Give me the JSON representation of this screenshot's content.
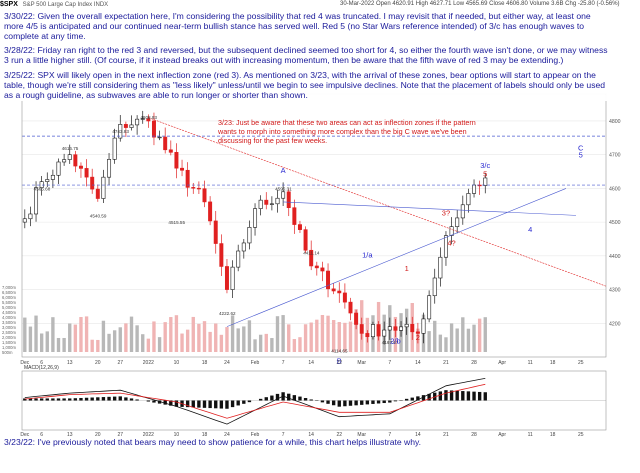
{
  "header": {
    "symbol": "$SPX",
    "description": "S&P 500 Large Cap Index  INDX",
    "ohlc": "30-Mar-2022  Open 4620.91  High 4627.71  Low 4565.69  Close 4606.80  Volume 3.6B  Chg -25.80 (-0.56%)"
  },
  "notes": [
    {
      "id": "note-3-30",
      "text": "3/30/22:  Given the overall expectation here, I'm considering the possibility that red 4 was truncated.  I may revisit that if needed, but either way, at least one more 4/5 is anticipated and our continued near-term bullish stance has served well.  Red 5 (no Star Wars reference intended) of 3/c has enough waves to complete at any time."
    },
    {
      "id": "note-3-28",
      "text": "3/28/22:  Friday ran right to the red 3 and reversed, but the subsequent declined seemed too short for 4, so either the fourth wave isn't done, or we may witness 3 run a little higher still.  (Of course, if it instead breaks out with increasing momentum, then be aware that the fifth wave of red 3 may be extending.)"
    },
    {
      "id": "note-3-25",
      "text": "3/25/22:  SPX will likely open in the next inflection zone (red 3).  As mentioned on 3/23, with the arrival of these zones, bear options will start to appear on the table, though we're still considering them as \"less likely\" unless/until we begin to see impulsive declines.  Note that the placement of labels should only be used as a rough guideline, as subwaves are able to run longer or shorter than shown."
    },
    {
      "id": "note-3-23-chart",
      "text": "3/23:  Just be aware that these two areas can act as inflection zones if the pattern wants to morph into something more complex than the big C wave we've been discussing for the past few weeks."
    },
    {
      "id": "note-3-23-macd",
      "text": "3/23/22:  I've previously noted that bears may need to show patience for a while, this chart helps illustrate why."
    }
  ],
  "chart_data": [
    {
      "type": "line",
      "title": "$SPX S&P 500 Large Cap Index INDX",
      "x": [
        "Dec 1",
        "Dec 6",
        "Dec 13",
        "Dec 20",
        "Dec 27",
        "Jan 3",
        "Jan 10",
        "Jan 18",
        "Jan 24",
        "Jan 31",
        "Feb 7",
        "Feb 14",
        "Feb 22",
        "Feb 28",
        "Mar 7",
        "Mar 14",
        "Mar 21",
        "Mar 28",
        "Mar 30"
      ],
      "series": [
        {
          "values": [
            4510,
            4620,
            4700,
            4570,
            4790,
            4800,
            4660,
            4560,
            4300,
            4540,
            4590,
            4370,
            4290,
            4170,
            4190,
            4170,
            4460,
            4610,
            4631
          ]
        }
      ],
      "price_ticks": [
        4200,
        4300,
        4400,
        4500,
        4600,
        4700,
        4800
      ],
      "price_tick_labels": [
        "4200",
        "4300",
        "4400",
        "4500",
        "4600",
        "4700",
        "4800"
      ],
      "ylim": [
        4100,
        4880
      ],
      "x_tick_labels": [
        "Dec",
        "6",
        "13",
        "20",
        "27",
        "2022",
        "10",
        "18",
        "24",
        "Feb",
        "7",
        "14",
        "22",
        "Mar",
        "7",
        "14",
        "21",
        "28",
        "Apr",
        "11",
        "18",
        "25"
      ],
      "volume_axis_labels": [
        "7,000m",
        "6,500m",
        "6,000m",
        "5,500m",
        "5,000m",
        "4,500m",
        "4,000m",
        "3,500m",
        "3,000m",
        "2,500m",
        "2,000m",
        "1,500m",
        "1,000m",
        "500m"
      ],
      "point_labels": [
        {
          "text": "4565.68",
          "x": "Dec 6",
          "y": 4600
        },
        {
          "text": "4616.75",
          "x": "Dec 13",
          "y": 4720
        },
        {
          "text": "4540.59",
          "x": "Dec 20",
          "y": 4520
        },
        {
          "text": "4743.83",
          "x": "Dec 27",
          "y": 4770
        },
        {
          "text": "4808.93",
          "x": "Jan 3",
          "y": 4812
        },
        {
          "text": "4515.55",
          "x": "Jan 10",
          "y": 4500
        },
        {
          "text": "4222.62",
          "x": "Jan 24",
          "y": 4230
        },
        {
          "text": "4595.31",
          "x": "Feb 7",
          "y": 4600
        },
        {
          "text": "4411.14",
          "x": "Feb 14",
          "y": 4410
        },
        {
          "text": "4114.65",
          "x": "Feb 22",
          "y": 4120
        },
        {
          "text": "4167.67",
          "x": "Mar 7",
          "y": 4145
        }
      ],
      "wave_labels": [
        {
          "text": "A",
          "x": "Feb 7",
          "y": 4645,
          "color": "#2a2ad0"
        },
        {
          "text": "B",
          "x": "Feb 22",
          "y": 4080,
          "color": "#2a2ad0"
        },
        {
          "text": "1/a",
          "x": "Mar 1",
          "y": 4395,
          "color": "#2a2ad0"
        },
        {
          "text": "2/b",
          "x": "Mar 8",
          "y": 4140,
          "color": "#2a2ad0"
        },
        {
          "text": "1",
          "x": "Mar 10",
          "y": 4355,
          "color": "#d01818"
        },
        {
          "text": "2",
          "x": "Mar 14",
          "y": 4150,
          "color": "#d01818"
        },
        {
          "text": "3?",
          "x": "Mar 21",
          "y": 4520,
          "color": "#d01818"
        },
        {
          "text": "4?",
          "x": "Mar 22",
          "y": 4430,
          "color": "#d01818"
        },
        {
          "text": "3/c",
          "x": "Mar 30",
          "y": 4660,
          "color": "#2a2ad0"
        },
        {
          "text": "5",
          "x": "Mar 30",
          "y": 4635,
          "color": "#d01818"
        },
        {
          "text": "C",
          "x": "Apr 25",
          "y": 4712,
          "color": "#2a2ad0"
        },
        {
          "text": "5",
          "x": "Apr 25",
          "y": 4692,
          "color": "#2a2ad0"
        },
        {
          "text": "4",
          "x": "Apr 11",
          "y": 4470,
          "color": "#2a2ad0"
        }
      ],
      "colors": {
        "bullish": "#1a1a1a",
        "bearish": "#e02020",
        "trendline": "#4a5ad0",
        "annotation_red": "#d01818",
        "annotation_blue": "#2a2ad0"
      }
    },
    {
      "type": "line",
      "title": "MACD(12,26,9)",
      "x": [
        "Dec 1",
        "Dec 13",
        "Dec 27",
        "Jan 10",
        "Jan 24",
        "Feb 7",
        "Feb 22",
        "Mar 7",
        "Mar 21",
        "Mar 30"
      ],
      "series": [
        {
          "values": [
            10,
            25,
            35,
            -20,
            -80,
            15,
            -55,
            -45,
            50,
            75
          ]
        },
        {
          "values": [
            5,
            20,
            25,
            -5,
            -60,
            -5,
            -40,
            -40,
            25,
            55
          ]
        }
      ],
      "ylim": [
        -100,
        100
      ],
      "colors": {
        "macd": "#101010",
        "signal": "#e02020",
        "histogram": "#111111"
      }
    }
  ]
}
